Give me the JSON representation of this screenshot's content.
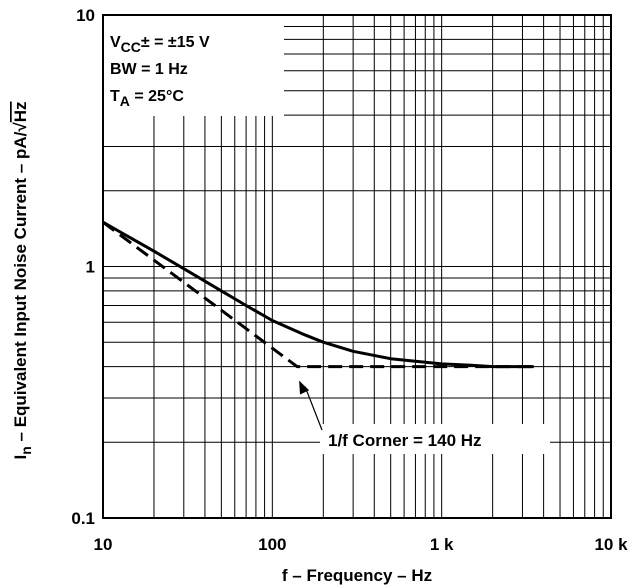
{
  "chart_data": {
    "type": "line",
    "title": "",
    "xlabel": "f – Frequency – Hz",
    "ylabel": {
      "prefix": "I",
      "sub": "n",
      "text": " – Equivalent Input Noise Current – pA/",
      "sqrt": "√",
      "radicand": "Hz"
    },
    "x_scale": "log",
    "y_scale": "log",
    "xlim": [
      10,
      10000
    ],
    "ylim": [
      0.1,
      10
    ],
    "x_ticks": [
      {
        "value": 10,
        "label": "10"
      },
      {
        "value": 100,
        "label": "100"
      },
      {
        "value": 1000,
        "label": "1 k"
      },
      {
        "value": 10000,
        "label": "10 k"
      }
    ],
    "y_ticks": [
      {
        "value": 0.1,
        "label": "0.1"
      },
      {
        "value": 1,
        "label": "1"
      },
      {
        "value": 10,
        "label": "10"
      }
    ],
    "grid": true,
    "conditions": [
      {
        "main": "V",
        "sub": "CC",
        "rest": "± = ±15 V"
      },
      {
        "main": "BW = 1 Hz",
        "sub": "",
        "rest": ""
      },
      {
        "main": "T",
        "sub": "A",
        "rest": " = 25°C"
      }
    ],
    "legend_position": "top-left",
    "series": [
      {
        "style": "solid",
        "x": [
          10,
          20,
          30,
          50,
          70,
          100,
          150,
          200,
          300,
          500,
          700,
          1000,
          1500,
          2000,
          3500
        ],
        "y": [
          1.5,
          1.15,
          0.98,
          0.8,
          0.7,
          0.61,
          0.54,
          0.5,
          0.46,
          0.43,
          0.42,
          0.41,
          0.405,
          0.4,
          0.4
        ]
      },
      {
        "style": "dashed",
        "x": [
          10,
          140,
          3500
        ],
        "y": [
          1.5,
          0.4,
          0.4
        ]
      }
    ],
    "annotations": [
      {
        "text": "1/f Corner = 140 Hz",
        "x": 140,
        "y": 0.4
      }
    ]
  }
}
